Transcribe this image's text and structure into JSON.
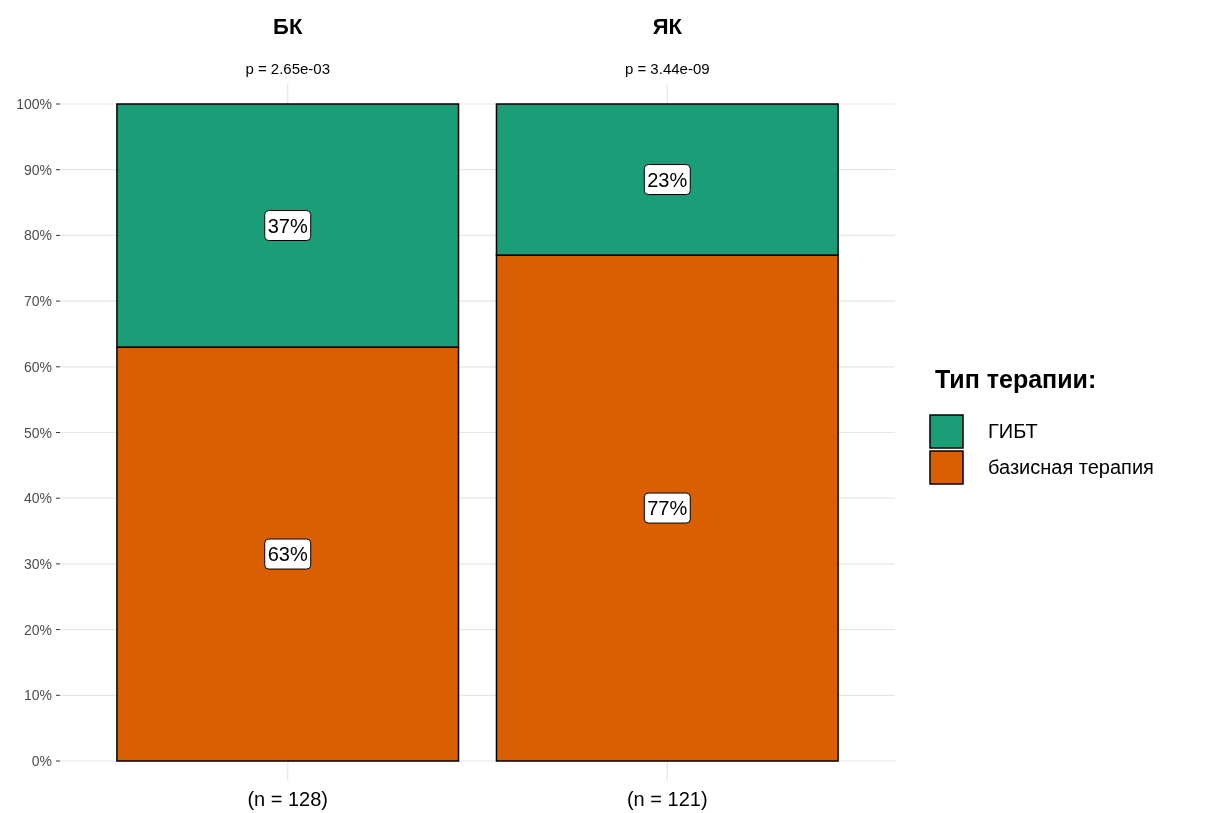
{
  "chart_data": {
    "type": "bar",
    "stacked": true,
    "categories": [
      "(n = 128)",
      "(n = 121)"
    ],
    "series": [
      {
        "name": "базисная терапия",
        "color": "#d95f02",
        "values": [
          63,
          77
        ],
        "value_labels": [
          "63%",
          "77%"
        ]
      },
      {
        "name": "ГИБТ",
        "color": "#1b9e77",
        "values": [
          37,
          23
        ],
        "value_labels": [
          "37%",
          "23%"
        ]
      }
    ],
    "ylim": [
      0,
      100
    ],
    "yticks": [
      {
        "value": 0,
        "label": "0%"
      },
      {
        "value": 10,
        "label": "10%"
      },
      {
        "value": 20,
        "label": "20%"
      },
      {
        "value": 30,
        "label": "30%"
      },
      {
        "value": 40,
        "label": "40%"
      },
      {
        "value": 50,
        "label": "50%"
      },
      {
        "value": 60,
        "label": "60%"
      },
      {
        "value": 70,
        "label": "70%"
      },
      {
        "value": 80,
        "label": "80%"
      },
      {
        "value": 90,
        "label": "90%"
      },
      {
        "value": 100,
        "label": "100%"
      }
    ],
    "grid": true,
    "legend": "right",
    "legend_title": "Тип терапии:",
    "annotations": [
      "БК",
      "ЯК",
      "p = 2.65e-03",
      "p = 3.44e-09"
    ]
  }
}
